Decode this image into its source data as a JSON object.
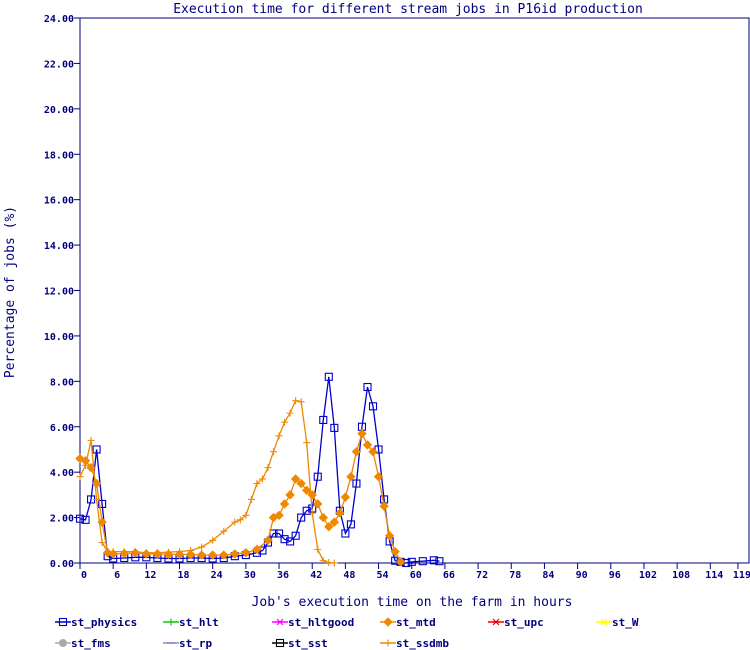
{
  "chart_data": {
    "type": "line",
    "title": "Execution time for different stream jobs in P16id production",
    "xlabel": "Job's execution time on the farm in hours",
    "ylabel": "Percentage of jobs (%)",
    "xlim": [
      0,
      121
    ],
    "ylim": [
      0,
      24
    ],
    "xticks": [
      0,
      6,
      12,
      18,
      24,
      30,
      36,
      42,
      48,
      54,
      60,
      66,
      72,
      78,
      84,
      90,
      96,
      102,
      108,
      114,
      119
    ],
    "yticks": [
      0,
      2,
      4,
      6,
      8,
      10,
      12,
      14,
      16,
      18,
      20,
      22,
      24
    ],
    "ytick_labels": [
      "0.00",
      "2.00",
      "4.00",
      "6.00",
      "8.00",
      "10.00",
      "12.00",
      "14.00",
      "16.00",
      "18.00",
      "20.00",
      "22.00",
      "24.00"
    ],
    "grid": false,
    "legend": [
      {
        "name": "st_physics",
        "color": "#0000cc",
        "marker": "square"
      },
      {
        "name": "st_hlt",
        "color": "#00cc00",
        "marker": "plus"
      },
      {
        "name": "st_hltgood",
        "color": "#ff00ff",
        "marker": "star"
      },
      {
        "name": "st_mtd",
        "color": "#ee8800",
        "marker": "diamond"
      },
      {
        "name": "st_upc",
        "color": "#ee0000",
        "marker": "star"
      },
      {
        "name": "st_W",
        "color": "#ffff00",
        "marker": "star"
      },
      {
        "name": "st_fms",
        "color": "#aaaaaa",
        "marker": "circle"
      },
      {
        "name": "st_rp",
        "color": "#8888cc",
        "marker": "dash"
      },
      {
        "name": "st_sst",
        "color": "#000000",
        "marker": "square"
      },
      {
        "name": "st_ssdmb",
        "color": "#ee8800",
        "marker": "plus"
      }
    ],
    "series": [
      {
        "name": "st_physics",
        "color": "#0000cc",
        "marker": "square",
        "x": [
          0,
          1,
          2,
          3,
          4,
          5,
          6,
          8,
          10,
          12,
          14,
          16,
          18,
          20,
          22,
          24,
          26,
          28,
          30,
          32,
          33,
          34,
          35,
          36,
          37,
          38,
          39,
          40,
          41,
          42,
          43,
          44,
          45,
          46,
          47,
          48,
          49,
          50,
          51,
          52,
          53,
          54,
          55,
          56,
          57,
          58,
          59,
          60,
          62,
          64,
          65
        ],
        "y": [
          1.95,
          1.9,
          2.8,
          5.0,
          2.6,
          0.3,
          0.2,
          0.22,
          0.25,
          0.25,
          0.22,
          0.2,
          0.2,
          0.22,
          0.22,
          0.2,
          0.22,
          0.3,
          0.35,
          0.45,
          0.55,
          0.9,
          1.3,
          1.3,
          1.05,
          0.95,
          1.2,
          2.0,
          2.3,
          2.4,
          3.8,
          6.3,
          8.2,
          5.95,
          2.3,
          1.3,
          1.7,
          3.5,
          6.0,
          7.75,
          6.9,
          5.0,
          2.8,
          0.95,
          0.1,
          0.05,
          0.0,
          0.05,
          0.08,
          0.12,
          0.08
        ]
      },
      {
        "name": "st_mtd",
        "color": "#ee8800",
        "marker": "diamond",
        "x": [
          0,
          1,
          2,
          3,
          4,
          5,
          6,
          8,
          10,
          12,
          14,
          16,
          18,
          20,
          22,
          24,
          26,
          28,
          30,
          32,
          34,
          35,
          36,
          37,
          38,
          39,
          40,
          41,
          42,
          43,
          44,
          45,
          46,
          47,
          48,
          49,
          50,
          51,
          52,
          53,
          54,
          55,
          56,
          57,
          58
        ],
        "y": [
          4.6,
          4.5,
          4.2,
          3.5,
          1.8,
          0.45,
          0.4,
          0.42,
          0.45,
          0.4,
          0.4,
          0.38,
          0.38,
          0.38,
          0.35,
          0.35,
          0.35,
          0.4,
          0.45,
          0.6,
          1.0,
          2.0,
          2.1,
          2.6,
          3.0,
          3.7,
          3.5,
          3.2,
          3.0,
          2.6,
          2.0,
          1.6,
          1.8,
          2.2,
          2.9,
          3.8,
          4.9,
          5.7,
          5.2,
          4.9,
          3.8,
          2.5,
          1.2,
          0.5,
          0.05
        ]
      },
      {
        "name": "st_ssdmb",
        "color": "#ee8800",
        "marker": "plus",
        "x": [
          0,
          1,
          2,
          3,
          4,
          5,
          6,
          8,
          10,
          12,
          14,
          16,
          18,
          20,
          22,
          24,
          26,
          28,
          29,
          30,
          31,
          32,
          33,
          34,
          35,
          36,
          37,
          38,
          39,
          40,
          41,
          42,
          43,
          44,
          45,
          46
        ],
        "y": [
          3.8,
          4.3,
          5.4,
          2.8,
          0.9,
          0.5,
          0.5,
          0.5,
          0.5,
          0.45,
          0.45,
          0.48,
          0.5,
          0.55,
          0.7,
          1.0,
          1.4,
          1.8,
          1.9,
          2.1,
          2.8,
          3.5,
          3.7,
          4.2,
          4.9,
          5.6,
          6.2,
          6.6,
          7.15,
          7.1,
          5.3,
          2.2,
          0.6,
          0.1,
          0.02,
          0.0
        ]
      }
    ]
  }
}
